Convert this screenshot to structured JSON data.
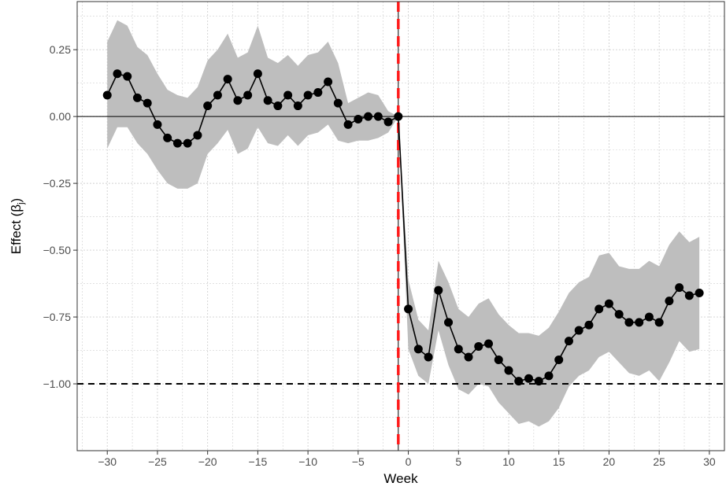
{
  "chart_data": {
    "type": "line",
    "title": "",
    "xlabel": "Week",
    "ylabel": "Effect (β",
    "ylabel_subscript": "j",
    "ylabel_close": ")",
    "xlim": [
      -33,
      31.5
    ],
    "ylim": [
      -1.25,
      0.43
    ],
    "x_ticks": [
      -30,
      -25,
      -20,
      -15,
      -10,
      -5,
      0,
      5,
      10,
      15,
      20,
      25,
      30
    ],
    "x_tick_labels": [
      "−30",
      "−25",
      "−20",
      "−15",
      "−10",
      "−5",
      "0",
      "5",
      "10",
      "15",
      "20",
      "25",
      "30"
    ],
    "y_ticks": [
      0.25,
      0.0,
      -0.25,
      -0.5,
      -0.75,
      -1.0
    ],
    "y_tick_labels": [
      "0.25",
      "0.00",
      "−0.25",
      "−0.50",
      "−0.75",
      "−1.00"
    ],
    "grid": true,
    "reference_lines": {
      "horizontal_solid": 0.0,
      "horizontal_dashed": -1.0,
      "vertical_dashed_red": -1
    },
    "colors": {
      "line": "#000000",
      "ribbon": "#bebebe",
      "grid": "#d0d0d0",
      "event_line": "#ff1a1a"
    },
    "series": [
      {
        "x": [
          -30,
          -29,
          -28,
          -27,
          -26,
          -25,
          -24,
          -23,
          -22,
          -21,
          -20,
          -19,
          -18,
          -17,
          -16,
          -15,
          -14,
          -13,
          -12,
          -11,
          -10,
          -9,
          -8,
          -7,
          -6,
          -5,
          -4,
          -3,
          -2,
          -1,
          0,
          1,
          2,
          3,
          4,
          5,
          6,
          7,
          8,
          9,
          10,
          11,
          12,
          13,
          14,
          15,
          16,
          17,
          18,
          19,
          20,
          21,
          22,
          23,
          24,
          25,
          26,
          27,
          28,
          29
        ],
        "y": [
          0.08,
          0.16,
          0.15,
          0.07,
          0.05,
          -0.03,
          -0.08,
          -0.1,
          -0.1,
          -0.07,
          0.04,
          0.08,
          0.14,
          0.06,
          0.08,
          0.16,
          0.06,
          0.04,
          0.08,
          0.04,
          0.08,
          0.09,
          0.13,
          0.05,
          -0.03,
          -0.01,
          0.0,
          0.0,
          -0.02,
          0.0,
          -0.72,
          -0.87,
          -0.9,
          -0.65,
          -0.77,
          -0.87,
          -0.9,
          -0.86,
          -0.85,
          -0.91,
          -0.95,
          -0.99,
          -0.98,
          -0.99,
          -0.97,
          -0.91,
          -0.84,
          -0.8,
          -0.78,
          -0.72,
          -0.7,
          -0.74,
          -0.77,
          -0.77,
          -0.75,
          -0.77,
          -0.69,
          -0.64,
          -0.67,
          -0.66
        ],
        "lower": [
          -0.12,
          -0.04,
          -0.04,
          -0.1,
          -0.14,
          -0.2,
          -0.25,
          -0.27,
          -0.27,
          -0.25,
          -0.14,
          -0.1,
          -0.05,
          -0.14,
          -0.12,
          -0.04,
          -0.1,
          -0.11,
          -0.07,
          -0.11,
          -0.07,
          -0.06,
          -0.03,
          -0.09,
          -0.1,
          -0.09,
          -0.09,
          -0.08,
          -0.06,
          0.0,
          -0.87,
          -0.97,
          -1.0,
          -0.8,
          -0.93,
          -1.02,
          -1.04,
          -1.0,
          -1.01,
          -1.07,
          -1.11,
          -1.15,
          -1.14,
          -1.16,
          -1.14,
          -1.09,
          -1.01,
          -0.97,
          -0.95,
          -0.9,
          -0.88,
          -0.92,
          -0.96,
          -0.97,
          -0.95,
          -0.99,
          -0.92,
          -0.84,
          -0.88,
          -0.87
        ],
        "upper": [
          0.28,
          0.36,
          0.34,
          0.26,
          0.23,
          0.16,
          0.1,
          0.08,
          0.07,
          0.11,
          0.21,
          0.25,
          0.31,
          0.22,
          0.24,
          0.34,
          0.22,
          0.2,
          0.23,
          0.19,
          0.23,
          0.24,
          0.28,
          0.2,
          0.05,
          0.07,
          0.09,
          0.08,
          0.02,
          0.0,
          -0.61,
          -0.76,
          -0.8,
          -0.54,
          -0.62,
          -0.72,
          -0.75,
          -0.7,
          -0.68,
          -0.74,
          -0.78,
          -0.81,
          -0.81,
          -0.82,
          -0.79,
          -0.73,
          -0.66,
          -0.62,
          -0.6,
          -0.52,
          -0.51,
          -0.56,
          -0.57,
          -0.57,
          -0.54,
          -0.56,
          -0.48,
          -0.43,
          -0.47,
          -0.45
        ]
      }
    ]
  }
}
